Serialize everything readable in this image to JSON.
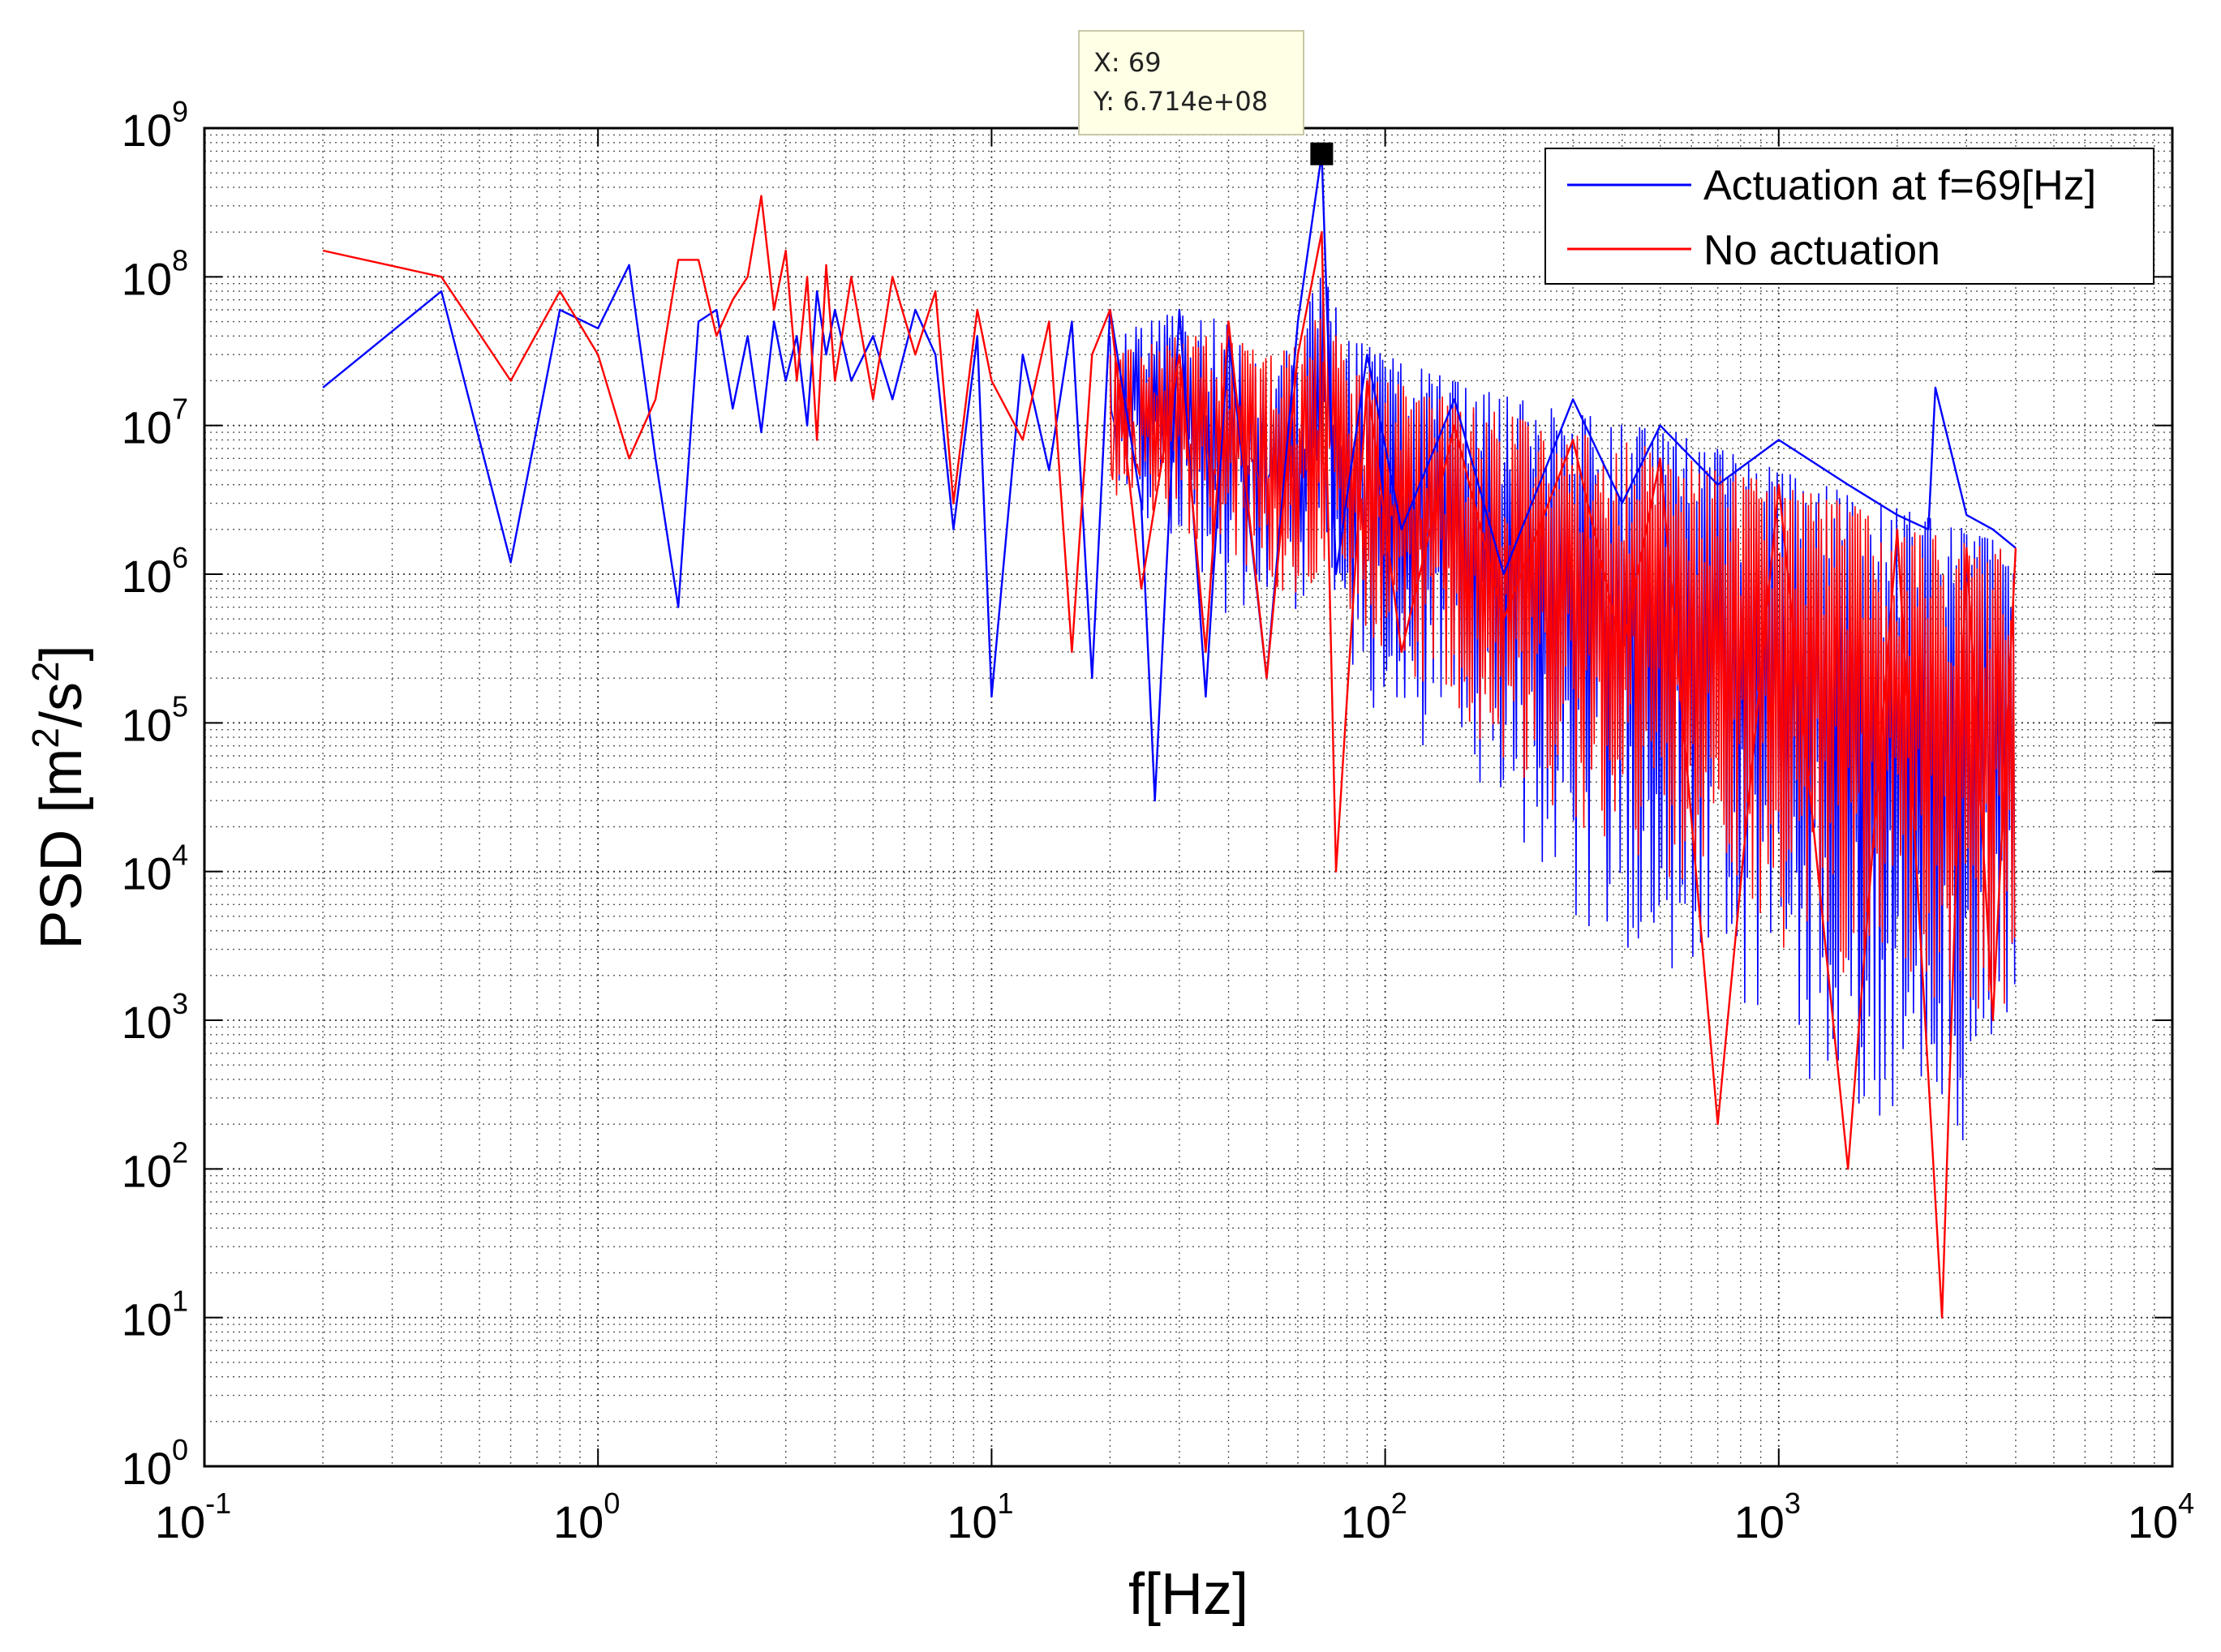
{
  "chart_data": {
    "type": "line",
    "scale": {
      "x": "log",
      "y": "log"
    },
    "xlabel": "f[Hz]",
    "ylabel_base": "PSD [m",
    "ylabel_sup1": "2",
    "ylabel_mid": "/s",
    "ylabel_sup2": "2",
    "ylabel_end": "]",
    "xlim": [
      0.1,
      10000
    ],
    "ylim": [
      1,
      1000000000
    ],
    "x_ticks": [
      {
        "base": "10",
        "exp": "-1",
        "value": 0.1
      },
      {
        "base": "10",
        "exp": "0",
        "value": 1
      },
      {
        "base": "10",
        "exp": "1",
        "value": 10
      },
      {
        "base": "10",
        "exp": "2",
        "value": 100
      },
      {
        "base": "10",
        "exp": "3",
        "value": 1000
      },
      {
        "base": "10",
        "exp": "4",
        "value": 10000
      }
    ],
    "y_ticks": [
      {
        "base": "10",
        "exp": "0",
        "value": 1
      },
      {
        "base": "10",
        "exp": "1",
        "value": 10
      },
      {
        "base": "10",
        "exp": "2",
        "value": 100
      },
      {
        "base": "10",
        "exp": "3",
        "value": 1000
      },
      {
        "base": "10",
        "exp": "4",
        "value": 10000
      },
      {
        "base": "10",
        "exp": "5",
        "value": 100000
      },
      {
        "base": "10",
        "exp": "6",
        "value": 1000000
      },
      {
        "base": "10",
        "exp": "7",
        "value": 10000000
      },
      {
        "base": "10",
        "exp": "8",
        "value": 100000000
      },
      {
        "base": "10",
        "exp": "9",
        "value": 1000000000
      }
    ],
    "grid": true,
    "legend_position": "top-right",
    "series": [
      {
        "name": "Actuation at f=69[Hz]",
        "color": "#0000ff",
        "x": [
          0.2,
          0.4,
          0.6,
          0.8,
          1.0,
          1.2,
          1.4,
          1.6,
          1.8,
          2.0,
          2.2,
          2.4,
          2.6,
          2.8,
          3.0,
          3.2,
          3.4,
          3.6,
          3.8,
          4.0,
          4.4,
          5.0,
          5.6,
          6.4,
          7.2,
          8.0,
          9.2,
          10,
          12,
          14,
          16,
          18,
          20,
          24,
          26,
          30,
          35,
          40,
          50,
          60,
          69,
          75,
          90,
          110,
          150,
          200,
          300,
          400,
          500,
          700,
          1000,
          1500,
          2000,
          2400,
          2500,
          3000,
          3500,
          4000
        ],
        "y": [
          18000000,
          80000000,
          1200000,
          60000000,
          45000000,
          120000000,
          6000000,
          600000,
          50000000,
          60000000,
          13000000,
          40000000,
          9000000,
          50000000,
          20000000,
          40000000,
          10000000,
          80000000,
          30000000,
          60000000,
          20000000,
          40000000,
          15000000,
          60000000,
          30000000,
          2000000,
          40000000,
          150000,
          30000000,
          5000000,
          50000000,
          200000,
          60000000,
          3000000,
          30000,
          60000000,
          150000,
          40000000,
          200000,
          50000000,
          671400000,
          1000000,
          30000000,
          2000000,
          15000000,
          1000000,
          15000000,
          3000000,
          10000000,
          4000000,
          8000000,
          4000000,
          2500000,
          2000000,
          18000000,
          2500000,
          2000000,
          1500000
        ],
        "band_upper": [
          [
            20,
            40000000
          ],
          [
            30,
            60000000
          ],
          [
            40,
            50000000
          ],
          [
            50,
            30000000
          ],
          [
            60,
            40000000
          ],
          [
            69,
            120000000
          ],
          [
            80,
            40000000
          ],
          [
            100,
            30000000
          ],
          [
            150,
            20000000
          ],
          [
            200,
            16000000
          ],
          [
            300,
            12000000
          ],
          [
            500,
            10000000
          ],
          [
            700,
            7000000
          ],
          [
            1000,
            5000000
          ],
          [
            1500,
            3500000
          ],
          [
            2000,
            2800000
          ],
          [
            3000,
            2000000
          ],
          [
            4000,
            1600000
          ]
        ],
        "band_lower": [
          [
            20,
            5000000
          ],
          [
            30,
            1000000
          ],
          [
            40,
            500000
          ],
          [
            50,
            800000
          ],
          [
            60,
            300000
          ],
          [
            69,
            2000000
          ],
          [
            80,
            200000
          ],
          [
            100,
            100000
          ],
          [
            150,
            50000
          ],
          [
            200,
            20000
          ],
          [
            300,
            5000
          ],
          [
            500,
            2000
          ],
          [
            700,
            1000
          ],
          [
            1000,
            500
          ],
          [
            1500,
            300
          ],
          [
            2000,
            150
          ],
          [
            3000,
            80
          ],
          [
            4000,
            300
          ]
        ]
      },
      {
        "name": "No actuation",
        "color": "#ff0000",
        "x": [
          0.2,
          0.4,
          0.6,
          0.8,
          1.0,
          1.2,
          1.4,
          1.6,
          1.8,
          2.0,
          2.2,
          2.4,
          2.6,
          2.8,
          3.0,
          3.2,
          3.4,
          3.6,
          3.8,
          4.0,
          4.4,
          5.0,
          5.6,
          6.4,
          7.2,
          8.0,
          9.2,
          10,
          12,
          14,
          16,
          18,
          20,
          24,
          30,
          35,
          40,
          50,
          60,
          69,
          75,
          90,
          110,
          150,
          200,
          300,
          400,
          500,
          700,
          1000,
          1500,
          2000,
          2600,
          3000,
          3500,
          4000
        ],
        "y": [
          150000000,
          100000000,
          20000000,
          80000000,
          30000000,
          6000000,
          15000000,
          130000000,
          130000000,
          40000000,
          70000000,
          100000000,
          350000000,
          60000000,
          150000000,
          20000000,
          100000000,
          8000000,
          120000000,
          20000000,
          100000000,
          15000000,
          100000000,
          30000000,
          80000000,
          3000000,
          60000000,
          20000000,
          8000000,
          50000000,
          300000,
          30000000,
          60000000,
          800000,
          30000000,
          300000,
          50000000,
          200000,
          30000000,
          200000000,
          10000,
          20000000,
          300000,
          10000000,
          500000,
          8000000,
          300000,
          6000000,
          200,
          4000000,
          100,
          2000000,
          10,
          1500000,
          1000,
          1500000
        ],
        "band_upper": [
          [
            20,
            30000000
          ],
          [
            30,
            40000000
          ],
          [
            40,
            40000000
          ],
          [
            50,
            30000000
          ],
          [
            60,
            35000000
          ],
          [
            69,
            60000000
          ],
          [
            80,
            30000000
          ],
          [
            100,
            20000000
          ],
          [
            150,
            15000000
          ],
          [
            200,
            12000000
          ],
          [
            300,
            9000000
          ],
          [
            500,
            7000000
          ],
          [
            700,
            5000000
          ],
          [
            1000,
            4000000
          ],
          [
            1500,
            3000000
          ],
          [
            2000,
            2200000
          ],
          [
            3000,
            1700000
          ],
          [
            4000,
            1400000
          ]
        ],
        "band_lower": [
          [
            20,
            3000000
          ],
          [
            30,
            2000000
          ],
          [
            40,
            1000000
          ],
          [
            50,
            800000
          ],
          [
            60,
            500000
          ],
          [
            69,
            1000000
          ],
          [
            80,
            500000
          ],
          [
            100,
            300000
          ],
          [
            150,
            100000
          ],
          [
            200,
            50000
          ],
          [
            300,
            20000
          ],
          [
            500,
            10000
          ],
          [
            700,
            5000
          ],
          [
            1000,
            3000
          ],
          [
            1500,
            2000
          ],
          [
            2000,
            1500
          ],
          [
            3000,
            1200
          ],
          [
            4000,
            1000
          ]
        ]
      }
    ],
    "datatip": {
      "x_text": "X: 69",
      "y_text": "Y: 6.714e+08",
      "x": 69,
      "y": 671400000
    }
  }
}
